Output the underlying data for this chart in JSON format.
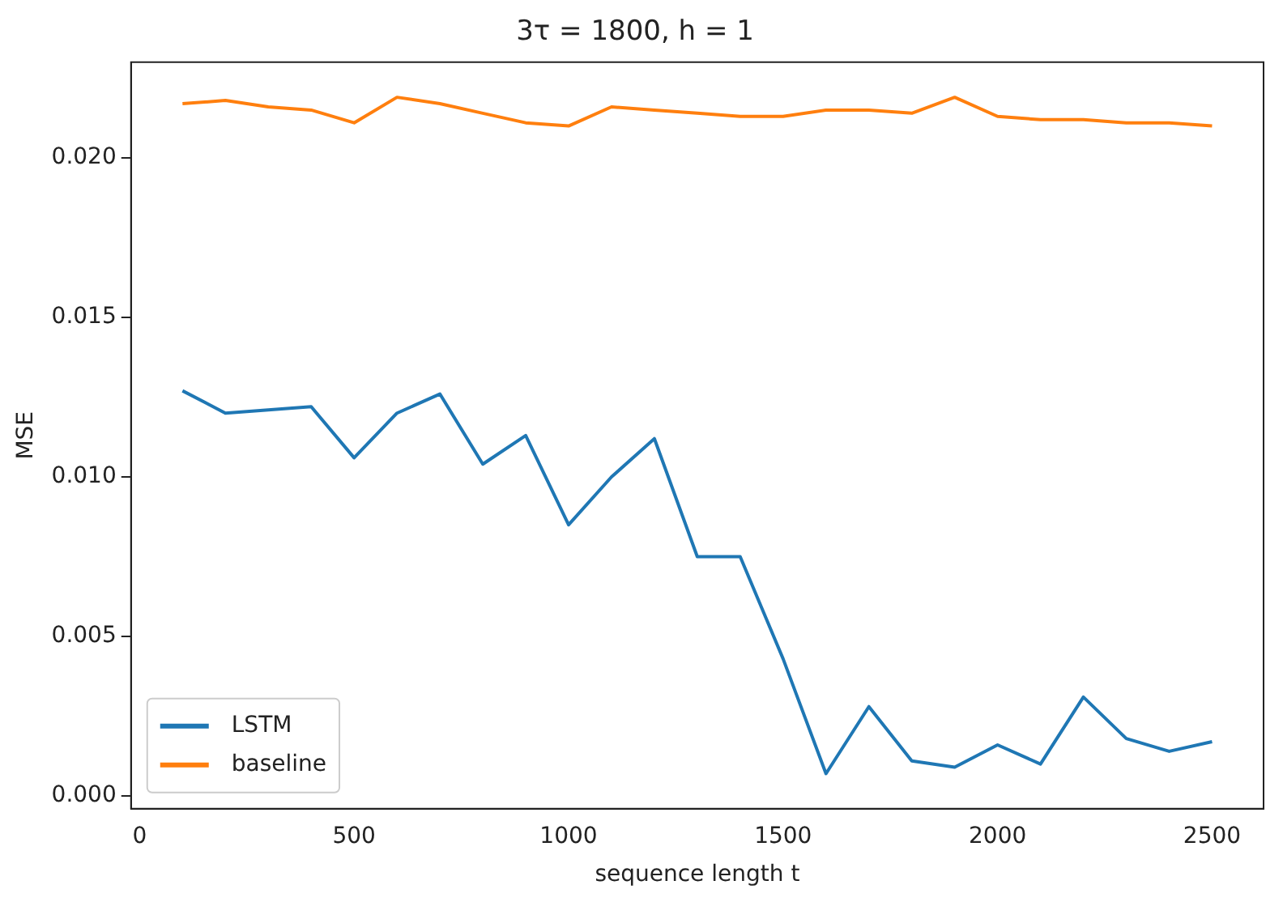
{
  "chart_data": {
    "type": "line",
    "title": "3τ = 1800, h = 1",
    "xlabel": "sequence length t",
    "ylabel": "MSE",
    "x": [
      100,
      200,
      300,
      400,
      500,
      600,
      700,
      800,
      900,
      1000,
      1100,
      1200,
      1300,
      1400,
      1500,
      1600,
      1700,
      1800,
      1900,
      2000,
      2100,
      2200,
      2300,
      2400,
      2500
    ],
    "series": [
      {
        "name": "LSTM",
        "color": "#1f77b4",
        "values": [
          0.0127,
          0.012,
          0.0121,
          0.0122,
          0.0106,
          0.012,
          0.0126,
          0.0104,
          0.0113,
          0.0085,
          0.01,
          0.0112,
          0.0075,
          0.0075,
          0.0043,
          0.0007,
          0.0028,
          0.0011,
          0.0009,
          0.0016,
          0.001,
          0.0031,
          0.0018,
          0.0014,
          0.0017
        ]
      },
      {
        "name": "baseline",
        "color": "#ff7f0e",
        "values": [
          0.0217,
          0.0218,
          0.0216,
          0.0215,
          0.0211,
          0.0219,
          0.0217,
          0.0214,
          0.0211,
          0.021,
          0.0216,
          0.0215,
          0.0214,
          0.0213,
          0.0213,
          0.0215,
          0.0215,
          0.0214,
          0.0219,
          0.0213,
          0.0212,
          0.0212,
          0.0211,
          0.0211,
          0.021
        ]
      }
    ],
    "xlim": [
      -20,
      2620
    ],
    "ylim": [
      -0.0004,
      0.023
    ],
    "xticks": [
      0,
      500,
      1000,
      1500,
      2000,
      2500
    ],
    "yticks": [
      {
        "value": 0,
        "label": "0.000"
      },
      {
        "value": 0.005,
        "label": "0.005"
      },
      {
        "value": 0.01,
        "label": "0.010"
      },
      {
        "value": 0.015,
        "label": "0.015"
      },
      {
        "value": 0.02,
        "label": "0.020"
      }
    ],
    "grid": false,
    "legend": "bottom left",
    "marker": "none",
    "line_style": "solid"
  }
}
